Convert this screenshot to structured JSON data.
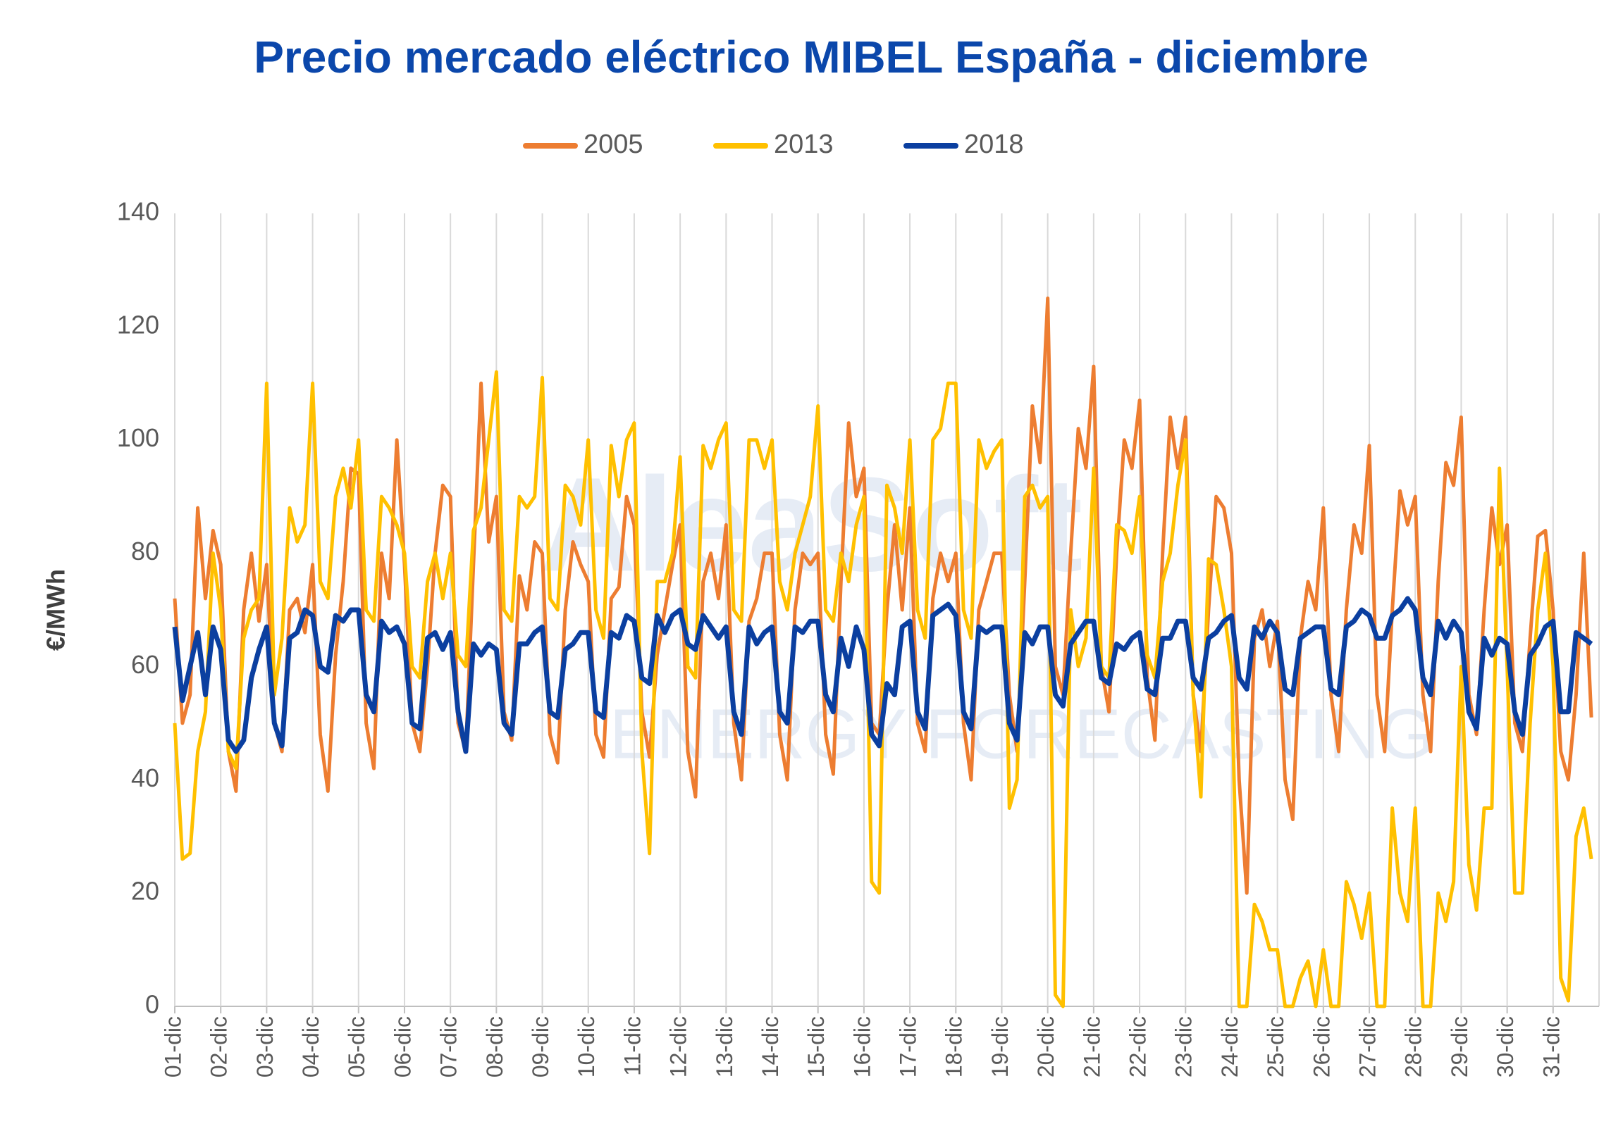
{
  "chart_data": {
    "type": "line",
    "title": "Precio mercado eléctrico MIBEL España - diciembre",
    "y_label": "€/MWh",
    "watermark": [
      "AleaSoft",
      "ENERGY FORECASTING"
    ],
    "ylim": [
      0,
      140
    ],
    "yticks": [
      0,
      20,
      40,
      60,
      80,
      100,
      120,
      140
    ],
    "grid": "x",
    "legend": "top",
    "categories": [
      "01-dic",
      null,
      null,
      null,
      null,
      null,
      "02-dic",
      null,
      null,
      null,
      null,
      null,
      "03-dic",
      null,
      null,
      null,
      null,
      null,
      "04-dic",
      null,
      null,
      null,
      null,
      null,
      "05-dic",
      null,
      null,
      null,
      null,
      null,
      "06-dic",
      null,
      null,
      null,
      null,
      null,
      "07-dic",
      null,
      null,
      null,
      null,
      null,
      "08-dic",
      null,
      null,
      null,
      null,
      null,
      "09-dic",
      null,
      null,
      null,
      null,
      null,
      "10-dic",
      null,
      null,
      null,
      null,
      null,
      "11-dic",
      null,
      null,
      null,
      null,
      null,
      "12-dic",
      null,
      null,
      null,
      null,
      null,
      "13-dic",
      null,
      null,
      null,
      null,
      null,
      "14-dic",
      null,
      null,
      null,
      null,
      null,
      "15-dic",
      null,
      null,
      null,
      null,
      null,
      "16-dic",
      null,
      null,
      null,
      null,
      null,
      "17-dic",
      null,
      null,
      null,
      null,
      null,
      "18-dic",
      null,
      null,
      null,
      null,
      null,
      "19-dic",
      null,
      null,
      null,
      null,
      null,
      "20-dic",
      null,
      null,
      null,
      null,
      null,
      "21-dic",
      null,
      null,
      null,
      null,
      null,
      "22-dic",
      null,
      null,
      null,
      null,
      null,
      "23-dic",
      null,
      null,
      null,
      null,
      null,
      "24-dic",
      null,
      null,
      null,
      null,
      null,
      "25-dic",
      null,
      null,
      null,
      null,
      null,
      "26-dic",
      null,
      null,
      null,
      null,
      null,
      "27-dic",
      null,
      null,
      null,
      null,
      null,
      "28-dic",
      null,
      null,
      null,
      null,
      null,
      "29-dic",
      null,
      null,
      null,
      null,
      null,
      "30-dic",
      null,
      null,
      null,
      null,
      null,
      "31-dic",
      null,
      null,
      null,
      null,
      null
    ],
    "series": [
      {
        "name": "2005",
        "color": "#ed7d31",
        "values": [
          72,
          50,
          55,
          88,
          72,
          84,
          78,
          45,
          38,
          70,
          80,
          68,
          78,
          50,
          45,
          70,
          72,
          66,
          78,
          48,
          38,
          62,
          75,
          95,
          94,
          50,
          42,
          80,
          72,
          100,
          78,
          50,
          45,
          60,
          80,
          92,
          90,
          50,
          45,
          78,
          110,
          82,
          90,
          52,
          47,
          76,
          70,
          82,
          80,
          48,
          43,
          70,
          82,
          78,
          75,
          48,
          44,
          72,
          74,
          90,
          85,
          52,
          44,
          62,
          70,
          78,
          85,
          45,
          37,
          75,
          80,
          72,
          85,
          50,
          40,
          68,
          72,
          80,
          80,
          48,
          40,
          70,
          80,
          78,
          80,
          48,
          41,
          75,
          103,
          90,
          95,
          50,
          48,
          70,
          85,
          70,
          88,
          50,
          45,
          72,
          80,
          75,
          80,
          50,
          40,
          70,
          75,
          80,
          80,
          55,
          45,
          75,
          106,
          96,
          125,
          60,
          55,
          80,
          102,
          95,
          113,
          60,
          52,
          80,
          100,
          95,
          107,
          58,
          47,
          80,
          104,
          95,
          104,
          55,
          45,
          70,
          90,
          88,
          80,
          40,
          20,
          65,
          70,
          60,
          68,
          40,
          33,
          65,
          75,
          70,
          88,
          55,
          45,
          70,
          85,
          80,
          99,
          55,
          45,
          70,
          91,
          85,
          90,
          55,
          45,
          75,
          96,
          92,
          104,
          55,
          48,
          70,
          88,
          78,
          85,
          50,
          45,
          65,
          83,
          84,
          70,
          45,
          40,
          55,
          80,
          51
        ]
      },
      {
        "name": "2013",
        "color": "#ffc000",
        "values": [
          50,
          26,
          27,
          45,
          52,
          80,
          70,
          45,
          42,
          65,
          70,
          72,
          110,
          55,
          65,
          88,
          82,
          85,
          110,
          75,
          72,
          90,
          95,
          88,
          100,
          70,
          68,
          90,
          88,
          85,
          80,
          60,
          58,
          75,
          80,
          72,
          80,
          62,
          60,
          84,
          88,
          100,
          112,
          70,
          68,
          90,
          88,
          90,
          111,
          72,
          70,
          92,
          90,
          85,
          100,
          70,
          65,
          99,
          90,
          100,
          103,
          45,
          27,
          75,
          75,
          80,
          97,
          60,
          58,
          99,
          95,
          100,
          103,
          70,
          68,
          100,
          100,
          95,
          100,
          75,
          70,
          80,
          85,
          90,
          106,
          70,
          68,
          80,
          75,
          85,
          90,
          22,
          20,
          92,
          88,
          80,
          100,
          70,
          65,
          100,
          102,
          110,
          110,
          70,
          65,
          100,
          95,
          98,
          100,
          35,
          40,
          90,
          92,
          88,
          90,
          2,
          0,
          70,
          60,
          65,
          95,
          60,
          58,
          85,
          84,
          80,
          90,
          62,
          58,
          75,
          80,
          92,
          100,
          55,
          37,
          79,
          78,
          70,
          60,
          0,
          0,
          18,
          15,
          10,
          10,
          0,
          0,
          5,
          8,
          0,
          10,
          0,
          0,
          22,
          18,
          12,
          20,
          0,
          0,
          35,
          20,
          15,
          35,
          0,
          0,
          20,
          15,
          22,
          60,
          25,
          17,
          35,
          35,
          95,
          60,
          20,
          20,
          50,
          70,
          80,
          60,
          5,
          1,
          30,
          35,
          26
        ]
      },
      {
        "name": "2018",
        "color": "#0b3fa0",
        "values": [
          67,
          54,
          60,
          66,
          55,
          67,
          63,
          47,
          45,
          47,
          58,
          63,
          67,
          50,
          46,
          65,
          66,
          70,
          69,
          60,
          59,
          69,
          68,
          70,
          70,
          55,
          52,
          68,
          66,
          67,
          64,
          50,
          49,
          65,
          66,
          63,
          66,
          52,
          45,
          64,
          62,
          64,
          63,
          50,
          48,
          64,
          64,
          66,
          67,
          52,
          51,
          63,
          64,
          66,
          66,
          52,
          51,
          66,
          65,
          69,
          68,
          58,
          57,
          69,
          66,
          69,
          70,
          64,
          63,
          69,
          67,
          65,
          67,
          52,
          48,
          67,
          64,
          66,
          67,
          52,
          50,
          67,
          66,
          68,
          68,
          55,
          52,
          65,
          60,
          67,
          63,
          48,
          46,
          57,
          55,
          67,
          68,
          52,
          49,
          69,
          70,
          71,
          69,
          52,
          49,
          67,
          66,
          67,
          67,
          50,
          47,
          66,
          64,
          67,
          67,
          55,
          53,
          64,
          66,
          68,
          68,
          58,
          57,
          64,
          63,
          65,
          66,
          56,
          55,
          65,
          65,
          68,
          68,
          58,
          56,
          65,
          66,
          68,
          69,
          58,
          56,
          67,
          65,
          68,
          66,
          56,
          55,
          65,
          66,
          67,
          67,
          56,
          55,
          67,
          68,
          70,
          69,
          65,
          65,
          69,
          70,
          72,
          70,
          58,
          55,
          68,
          65,
          68,
          66,
          52,
          49,
          65,
          62,
          65,
          64,
          52,
          48,
          62,
          64,
          67,
          68,
          52,
          52,
          66,
          65,
          64
        ]
      }
    ]
  }
}
